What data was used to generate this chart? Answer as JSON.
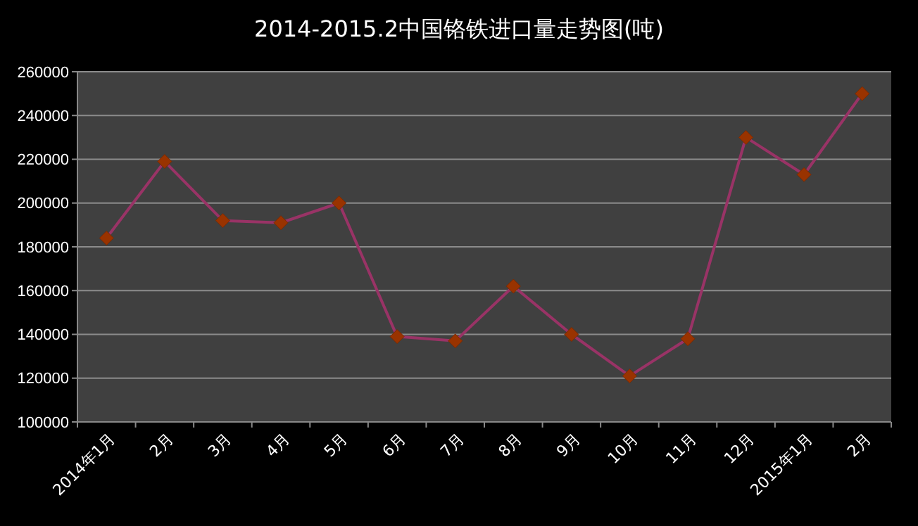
{
  "chart_data": {
    "type": "line",
    "title": "2014-2015.2中国铬铁进口量走势图(吨)",
    "categories": [
      "2014年1月",
      "2月",
      "3月",
      "4月",
      "5月",
      "6月",
      "7月",
      "8月",
      "9月",
      "10月",
      "11月",
      "12月",
      "2015年1月",
      "2月"
    ],
    "series": [
      {
        "color": "#993366",
        "values": [
          184000,
          219000,
          192000,
          191000,
          200000,
          139000,
          137000,
          162000,
          140000,
          121000,
          138000,
          230000,
          213000,
          250000
        ]
      }
    ],
    "ylim": [
      100000,
      260000
    ],
    "yticks": [
      100000,
      120000,
      140000,
      160000,
      180000,
      200000,
      220000,
      240000,
      260000
    ],
    "grid": "y",
    "marker": "diamond"
  }
}
